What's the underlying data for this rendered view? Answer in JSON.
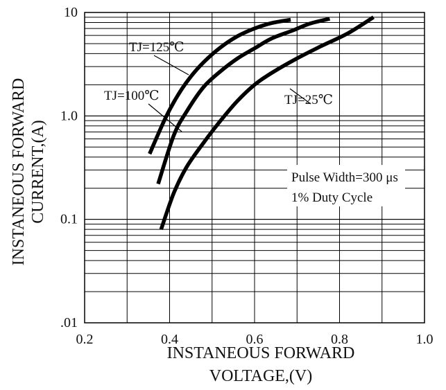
{
  "chart_data": {
    "type": "line",
    "title": "",
    "xlabel_lines": [
      "INSTANEOUS FORWARD",
      "VOLTAGE,(V)"
    ],
    "ylabel_lines": [
      "INSTANEOUS FORWARD",
      "CURRENT,(A)"
    ],
    "xlim": [
      0.2,
      1.0
    ],
    "ylim": [
      0.01,
      10
    ],
    "yscale": "log",
    "grid": true,
    "x_ticks": [
      0.2,
      0.4,
      0.6,
      0.8,
      1.0
    ],
    "x_tick_labels": [
      "0.2",
      "0.4",
      "0.6",
      "0.8",
      "1.0"
    ],
    "y_ticks": [
      0.01,
      0.1,
      1,
      10
    ],
    "y_tick_labels": [
      ".01",
      "0.1",
      "1.0",
      "10"
    ],
    "series": [
      {
        "name": "TJ=125℃",
        "x": [
          0.353,
          0.39,
          0.42,
          0.45,
          0.48,
          0.52,
          0.56,
          0.6,
          0.64,
          0.685
        ],
        "y": [
          0.43,
          0.95,
          1.6,
          2.4,
          3.3,
          4.6,
          5.9,
          7.0,
          7.9,
          8.5
        ]
      },
      {
        "name": "TJ=100℃",
        "x": [
          0.373,
          0.41,
          0.44,
          0.48,
          0.52,
          0.56,
          0.6,
          0.64,
          0.69,
          0.73,
          0.777
        ],
        "y": [
          0.22,
          0.65,
          1.1,
          1.9,
          2.7,
          3.6,
          4.5,
          5.6,
          6.7,
          7.8,
          8.7
        ]
      },
      {
        "name": "TJ=25℃",
        "x": [
          0.38,
          0.41,
          0.44,
          0.48,
          0.52,
          0.56,
          0.6,
          0.64,
          0.7,
          0.76,
          0.82,
          0.88
        ],
        "y": [
          0.08,
          0.18,
          0.32,
          0.55,
          0.9,
          1.4,
          2.0,
          2.6,
          3.6,
          4.8,
          6.3,
          9.0
        ]
      }
    ],
    "annotations": [
      {
        "text": "TJ=125℃",
        "series": 0
      },
      {
        "text": "TJ=100℃",
        "series": 1
      },
      {
        "text": "TJ=25℃",
        "series": 2
      }
    ],
    "notes": [
      "Pulse Width=300 μs",
      "1% Duty Cycle"
    ]
  }
}
